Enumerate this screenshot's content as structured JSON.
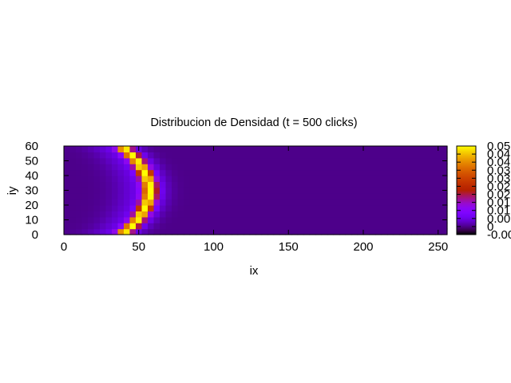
{
  "chart_data": {
    "type": "heatmap",
    "title": "Distribucion de Densidad (t = 500 clicks)",
    "xlabel": "ix",
    "ylabel": "iy",
    "xlim": [
      0,
      256
    ],
    "ylim": [
      0,
      60
    ],
    "xticks": [
      "0",
      "50",
      "100",
      "150",
      "200",
      "250"
    ],
    "yticks": [
      "0",
      "10",
      "20",
      "30",
      "40",
      "50",
      "60"
    ],
    "colorbar": {
      "range": [
        -0.005,
        0.05
      ],
      "ticks": [
        "-0.005",
        "0",
        "0.005",
        "0.01",
        "0.015",
        "0.02",
        "0.025",
        "0.03",
        "0.035",
        "0.04",
        "0.045",
        "0.05"
      ],
      "tick_labels_shown": [
        "-0.00",
        "0",
        "0.00",
        "0.01",
        "0.01",
        "0.02",
        "0.02",
        "0.03",
        "0.03",
        "0.04",
        "0.04",
        "0.05"
      ],
      "palette": "gnuplot default (black-blue-purple-red-orange-yellow)"
    },
    "grid": false,
    "background_value": 0.0,
    "wavefront": {
      "shape": "crescent, convex toward +ix",
      "center_iy": 30,
      "peak_ix_at_center": 57,
      "peak_ix_at_edges": 38,
      "peak_density": 0.045,
      "band_width_ix": 8
    }
  }
}
